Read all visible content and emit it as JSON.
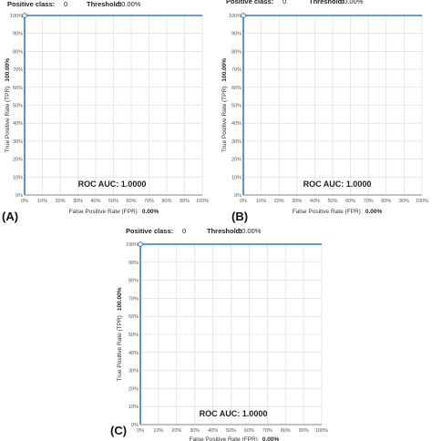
{
  "panels": [
    {
      "label": "(A)",
      "header": {
        "pos_class_label": "Positive class:",
        "pos_class_value": "0",
        "threshold_label": "Threshold:",
        "threshold_value": "50.00%"
      },
      "ylabel": "True Positive Rate (TPR)",
      "ylabel_value": "100.00%",
      "xlabel": "False Positive Rate (FPR)",
      "xlabel_value": "0.00%",
      "annotation": "ROC AUC: 1.0000"
    },
    {
      "label": "(B)",
      "header": {
        "pos_class_label": "Positive class:",
        "pos_class_value": "0",
        "threshold_label": "Threshold:",
        "threshold_value": "50.00%"
      },
      "ylabel": "True Positive Rate (TPR)",
      "ylabel_value": "100.00%",
      "xlabel": "False Positive Rate (FPR)",
      "xlabel_value": "0.00%",
      "annotation": "ROC AUC: 1.0000"
    },
    {
      "label": "(C)",
      "header": {
        "pos_class_label": "Positive class:",
        "pos_class_value": "0",
        "threshold_label": "Threshold:",
        "threshold_value": "50.00%"
      },
      "ylabel": "True Positive Rate (TPR)",
      "ylabel_value": "100.00%",
      "xlabel": "False Positive Rate (FPR)",
      "xlabel_value": "0.00%",
      "annotation": "ROC AUC: 1.0000"
    }
  ],
  "chart_data": [
    {
      "type": "line",
      "x": [
        0,
        0,
        100
      ],
      "y": [
        0,
        100,
        100
      ],
      "xlabel": "False Positive Rate (FPR)",
      "ylabel": "True Positive Rate (TPR)",
      "xlim": [
        0,
        100
      ],
      "ylim": [
        0,
        100
      ],
      "xticks": [
        "0%",
        "10%",
        "20%",
        "30%",
        "40%",
        "50%",
        "60%",
        "70%",
        "80%",
        "90%",
        "100%"
      ],
      "yticks": [
        "0%",
        "10%",
        "20%",
        "30%",
        "40%",
        "50%",
        "60%",
        "70%",
        "80%",
        "90%",
        "100%"
      ],
      "grid": true,
      "marker_at": [
        0,
        100
      ],
      "color": "#3a7bbd"
    },
    {
      "type": "line",
      "x": [
        0,
        0,
        100
      ],
      "y": [
        0,
        100,
        100
      ],
      "xlabel": "False Positive Rate (FPR)",
      "ylabel": "True Positive Rate (TPR)",
      "xlim": [
        0,
        100
      ],
      "ylim": [
        0,
        100
      ],
      "xticks": [
        "0%",
        "10%",
        "20%",
        "30%",
        "40%",
        "50%",
        "60%",
        "70%",
        "80%",
        "90%",
        "100%"
      ],
      "yticks": [
        "0%",
        "10%",
        "20%",
        "30%",
        "40%",
        "50%",
        "60%",
        "70%",
        "80%",
        "90%",
        "100%"
      ],
      "grid": true,
      "marker_at": [
        0,
        100
      ],
      "color": "#3a7bbd"
    },
    {
      "type": "line",
      "x": [
        0,
        0,
        100
      ],
      "y": [
        0,
        100,
        100
      ],
      "xlabel": "False Positive Rate (FPR)",
      "ylabel": "True Positive Rate (TPR)",
      "xlim": [
        0,
        100
      ],
      "ylim": [
        0,
        100
      ],
      "xticks": [
        "0%",
        "10%",
        "20%",
        "30%",
        "40%",
        "50%",
        "60%",
        "70%",
        "80%",
        "90%",
        "100%"
      ],
      "yticks": [
        "0%",
        "10%",
        "20%",
        "30%",
        "40%",
        "50%",
        "60%",
        "70%",
        "80%",
        "90%",
        "100%"
      ],
      "grid": true,
      "marker_at": [
        0,
        100
      ],
      "color": "#3a7bbd"
    }
  ]
}
